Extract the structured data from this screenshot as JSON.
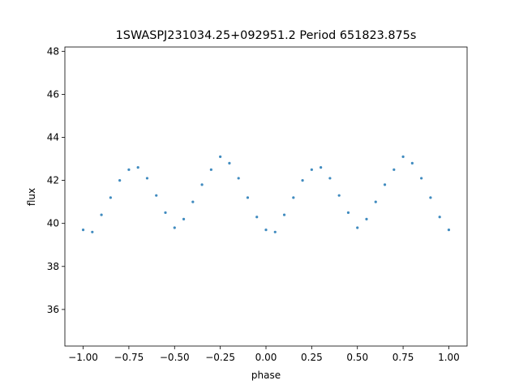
{
  "chart_data": {
    "type": "scatter",
    "title": "1SWASPJ231034.25+092951.2 Period 651823.875s",
    "xlabel": "phase",
    "ylabel": "flux",
    "xlim": [
      -1.1,
      1.1
    ],
    "ylim": [
      34.3,
      48.2
    ],
    "x_ticks": [
      -1.0,
      -0.75,
      -0.5,
      -0.25,
      0.0,
      0.25,
      0.5,
      0.75,
      1.0
    ],
    "x_tick_labels": [
      "−1.00",
      "−0.75",
      "−0.50",
      "−0.25",
      "0.00",
      "0.25",
      "0.50",
      "0.75",
      "1.00"
    ],
    "y_ticks": [
      36,
      38,
      40,
      42,
      44,
      46,
      48
    ],
    "y_tick_labels": [
      "36",
      "38",
      "40",
      "42",
      "44",
      "46",
      "48"
    ],
    "grid": false,
    "series": [
      {
        "color": "#1f77b4",
        "x": [
          -1.0,
          -0.95,
          -0.9,
          -0.85,
          -0.8,
          -0.75,
          -0.7,
          -0.65,
          -0.6,
          -0.55,
          -0.5,
          -0.45,
          -0.4,
          -0.35,
          -0.3,
          -0.25,
          -0.2,
          -0.15,
          -0.1,
          -0.05,
          0.0,
          0.05,
          0.1,
          0.15,
          0.2,
          0.25,
          0.3,
          0.35,
          0.4,
          0.45,
          0.5,
          0.55,
          0.6,
          0.65,
          0.7,
          0.75,
          0.8,
          0.85,
          0.9,
          0.95,
          1.0
        ],
        "y": [
          39.7,
          39.6,
          40.4,
          41.2,
          42.0,
          42.5,
          42.6,
          42.1,
          41.3,
          40.5,
          39.8,
          40.2,
          41.0,
          41.8,
          42.5,
          43.1,
          42.8,
          42.1,
          41.2,
          40.3,
          39.7,
          39.6,
          40.4,
          41.2,
          42.0,
          42.5,
          42.6,
          42.1,
          41.3,
          40.5,
          39.8,
          40.2,
          41.0,
          41.8,
          42.5,
          43.1,
          42.8,
          42.1,
          41.2,
          40.3,
          39.7
        ]
      }
    ]
  }
}
